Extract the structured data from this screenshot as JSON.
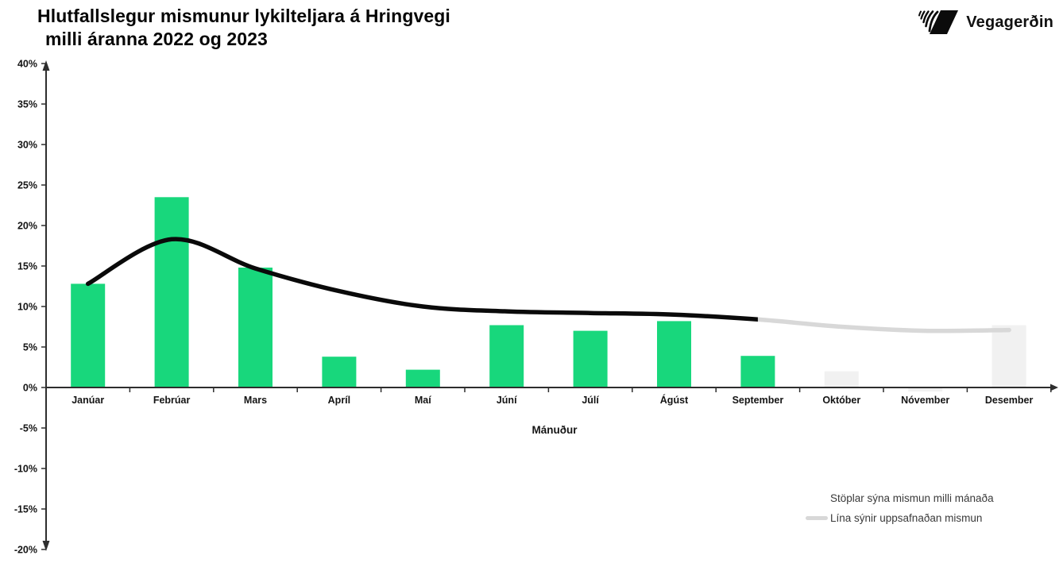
{
  "logo": {
    "text": "Vegagerðin"
  },
  "chart_data": {
    "type": "combo-bar-line",
    "title_lines": [
      "Hlutfallslegur mismunur lykilteljara á Hringvegi",
      "milli áranna 2022 og 2023"
    ],
    "categories": [
      "Janúar",
      "Febrúar",
      "Mars",
      "Apríl",
      "Maí",
      "Júní",
      "Júlí",
      "Ágúst",
      "September",
      "Október",
      "Nóvember",
      "Desember"
    ],
    "series": [
      {
        "name": "Stöplar sýna mismun milli mánaða",
        "type": "bar",
        "values": [
          12.8,
          23.5,
          14.8,
          3.8,
          2.2,
          7.7,
          7.0,
          8.2,
          3.9,
          2.0,
          -0.5,
          7.7
        ],
        "point_styles": [
          "actual",
          "actual",
          "actual",
          "actual",
          "actual",
          "actual",
          "actual",
          "actual",
          "actual",
          "projected",
          "projected",
          "projected"
        ]
      },
      {
        "name": "Lína sýnir uppsafnaðan mismun",
        "type": "line",
        "values": [
          12.8,
          18.3,
          14.7,
          11.9,
          10.0,
          9.4,
          9.2,
          9.0,
          8.4,
          7.5,
          7.0,
          7.1
        ],
        "split_index": 8
      }
    ],
    "xlabel": "Mánuður",
    "ylabel": "",
    "ylim": [
      -20,
      40
    ],
    "ytick_step": 5,
    "ytick_labels": [
      "40%",
      "35%",
      "30%",
      "25%",
      "20%",
      "15%",
      "10%",
      "5%",
      "0%",
      "-5%",
      "-10%",
      "-15%",
      "-20%"
    ],
    "grid": false,
    "legend_position": "bottom-right",
    "colors": {
      "bar_actual": "#18D77C",
      "bar_projected": "#F1F1F1",
      "line_actual": "#0A0A0A",
      "line_projected": "#D8D8D8",
      "axis": "#2E2E2E",
      "tick_text": "#141414",
      "legend_text": "#3A3A3A"
    }
  }
}
